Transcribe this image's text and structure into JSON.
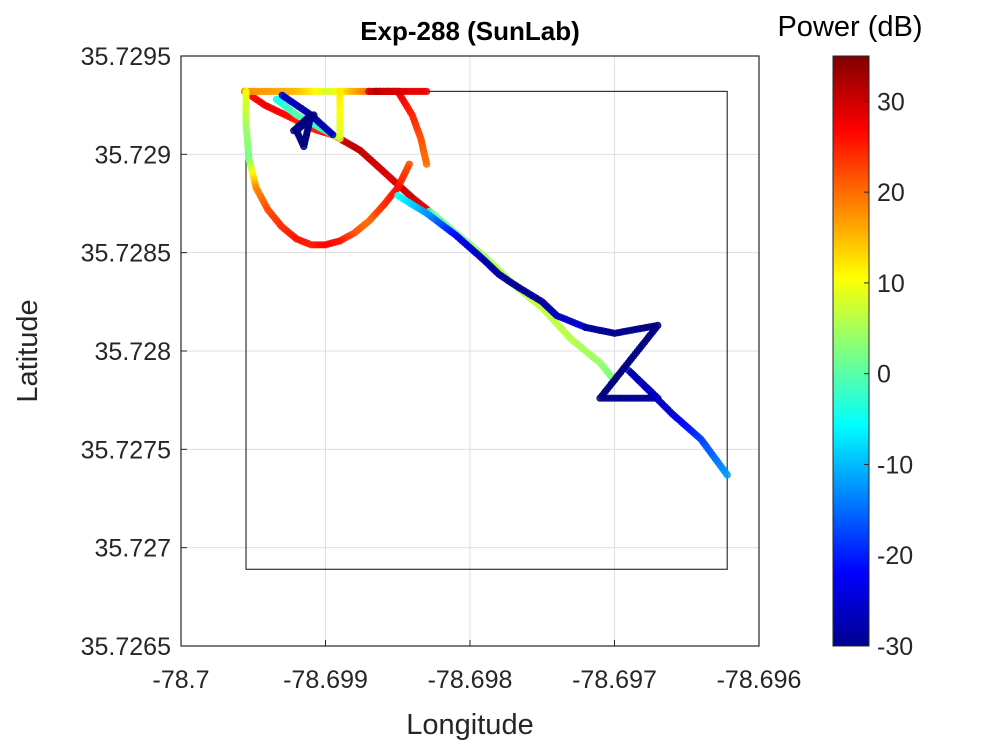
{
  "chart_data": {
    "type": "scatter",
    "title": "Exp-288 (SunLab)",
    "xlabel": "Longitude",
    "ylabel": "Latitude",
    "xlim": [
      -78.7,
      -78.696
    ],
    "ylim": [
      35.7265,
      35.7295
    ],
    "xticks": [
      -78.7,
      -78.699,
      -78.698,
      -78.697,
      -78.696
    ],
    "xtick_labels": [
      "-78.7",
      "-78.699",
      "-78.698",
      "-78.697",
      "-78.696"
    ],
    "yticks": [
      35.7265,
      35.727,
      35.7275,
      35.728,
      35.7285,
      35.729,
      35.7295
    ],
    "ytick_labels": [
      "35.7265",
      "35.727",
      "35.7275",
      "35.728",
      "35.7285",
      "35.729",
      "35.7295"
    ],
    "grid": true,
    "colorbar": {
      "title": "Power (dB)",
      "range": [
        -30,
        35
      ],
      "ticks": [
        -30,
        -20,
        -10,
        0,
        10,
        20,
        30
      ],
      "tick_labels": [
        "-30",
        "-20",
        "-10",
        "0",
        "10",
        "20",
        "30"
      ],
      "colormap": "jet"
    },
    "boundary_box": {
      "lon": [
        -78.69955,
        -78.69622
      ],
      "lat": [
        35.72689,
        35.72932
      ]
    },
    "track_segments": [
      {
        "lon": [
          -78.69956,
          -78.69942,
          -78.69922,
          -78.69912,
          -78.69905,
          -78.69895
        ],
        "lat": [
          35.72932,
          35.72925,
          35.72918,
          35.72914,
          35.72912,
          35.7291
        ],
        "power": [
          25,
          28,
          26,
          24,
          25,
          27
        ]
      },
      {
        "lon": [
          -78.69895,
          -78.69876,
          -78.69855,
          -78.6984,
          -78.69828
        ],
        "lat": [
          35.7291,
          35.72902,
          35.72888,
          35.72878,
          35.72871
        ],
        "power": [
          30,
          31,
          29,
          30,
          28
        ]
      },
      {
        "lon": [
          -78.69828,
          -78.6981,
          -78.6979,
          -78.6977,
          -78.6975,
          -78.6973,
          -78.6971,
          -78.697
        ],
        "lat": [
          35.72871,
          35.7286,
          35.72848,
          35.72834,
          35.72822,
          35.72806,
          35.72794,
          35.72785
        ],
        "power": [
          0,
          2,
          5,
          6,
          7,
          6,
          4,
          2
        ]
      },
      {
        "lon": [
          -78.69956,
          -78.6994,
          -78.6992,
          -78.6991,
          -78.699,
          -78.6989,
          -78.69885,
          -78.6987,
          -78.6985
        ],
        "lat": [
          35.72932,
          35.72932,
          35.72932,
          35.72932,
          35.72932,
          35.72932,
          35.72932,
          35.72932,
          35.72932
        ],
        "power": [
          18,
          17,
          15,
          12,
          8,
          10,
          14,
          20,
          24
        ]
      },
      {
        "lon": [
          -78.69955,
          -78.69955,
          -78.69953,
          -78.69948,
          -78.6994,
          -78.6993,
          -78.6992,
          -78.6991,
          -78.699,
          -78.6989,
          -78.6988,
          -78.6987,
          -78.6986,
          -78.6985,
          -78.69842
        ],
        "lat": [
          35.72932,
          35.72915,
          35.72898,
          35.72883,
          35.72872,
          35.72863,
          35.72857,
          35.72854,
          35.72854,
          35.72856,
          35.7286,
          35.72866,
          35.72874,
          35.72883,
          35.72895
        ],
        "power": [
          10,
          5,
          2,
          18,
          22,
          24,
          26,
          25,
          27,
          26,
          22,
          20,
          24,
          26,
          22
        ]
      },
      {
        "lon": [
          -78.6987,
          -78.6985,
          -78.6984,
          -78.69834,
          -78.6983
        ],
        "lat": [
          35.72932,
          35.72932,
          35.7292,
          35.72908,
          35.72895
        ],
        "power": [
          30,
          28,
          25,
          22,
          20
        ]
      },
      {
        "lon": [
          -78.69865,
          -78.6986,
          -78.6983
        ],
        "lat": [
          35.72932,
          35.72932,
          35.72932
        ],
        "power": [
          32,
          30,
          28
        ]
      },
      {
        "lon": [
          -78.69934,
          -78.6992,
          -78.699,
          -78.6989,
          -78.6989
        ],
        "lat": [
          35.72928,
          35.7292,
          35.72912,
          35.72908,
          35.72932
        ],
        "power": [
          -5,
          0,
          -3,
          8,
          12
        ]
      },
      {
        "lon": [
          -78.6993,
          -78.6991,
          -78.69895
        ],
        "lat": [
          35.7293,
          35.7292,
          35.7291
        ],
        "power": [
          -25,
          -28,
          -26
        ]
      },
      {
        "lon": [
          -78.69922,
          -78.6991,
          -78.69915,
          -78.6992,
          -78.69908
        ],
        "lat": [
          35.72912,
          35.7292,
          35.72904,
          35.72912,
          35.7292
        ],
        "power": [
          -30,
          -30,
          -30,
          -30,
          -30
        ]
      },
      {
        "lon": [
          -78.6985,
          -78.6983,
          -78.6981,
          -78.6979,
          -78.6978,
          -78.6977,
          -78.6975,
          -78.6974,
          -78.6972
        ],
        "lat": [
          35.72879,
          35.7287,
          35.72859,
          35.72846,
          35.72839,
          35.72834,
          35.72825,
          35.72818,
          35.72812
        ],
        "power": [
          -5,
          -12,
          -22,
          -27,
          -28,
          -29,
          -28,
          -26,
          -25
        ]
      },
      {
        "lon": [
          -78.6972,
          -78.697,
          -78.6967,
          -78.6971,
          -78.6967,
          -78.6969,
          -78.6966,
          -78.6964,
          -78.69622
        ],
        "lat": [
          35.72812,
          35.72809,
          35.72813,
          35.72776,
          35.72776,
          35.7279,
          35.72768,
          35.72755,
          35.72737
        ],
        "power": [
          -28,
          -29,
          -30,
          -30,
          -28,
          -27,
          -25,
          -18,
          -12
        ]
      }
    ]
  }
}
